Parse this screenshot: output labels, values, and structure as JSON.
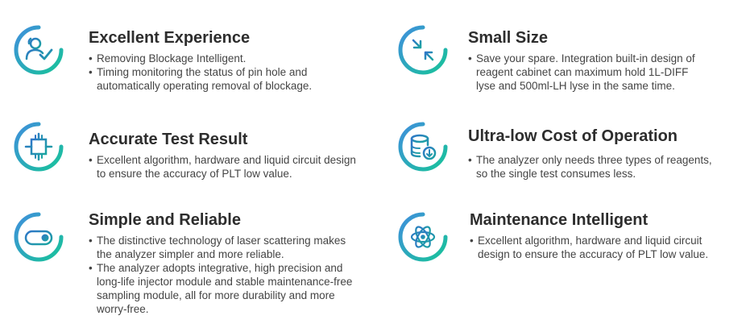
{
  "features": [
    {
      "icon": "users-check-icon",
      "title": "Excellent Experience",
      "bullets": [
        "Removing Blockage Intelligent.",
        "Timing monitoring the status of pin hole and automatically operating removal of blockage."
      ]
    },
    {
      "icon": "shrink-arrows-icon",
      "title": "Small Size",
      "bullets": [
        "Save your spare. Integration built-in design of reagent cabinet can maximum hold 1L-DIFF lyse and 500ml-LH lyse in the same time."
      ]
    },
    {
      "icon": "target-frame-icon",
      "title": "Accurate Test Result",
      "bullets": [
        "Excellent algorithm, hardware and liquid circuit design to ensure the accuracy of PLT low value."
      ]
    },
    {
      "icon": "database-download-icon",
      "title": "Ultra-low Cost of Operation",
      "bullets": [
        "The analyzer only needs three types of reagents, so the single test consumes less."
      ]
    },
    {
      "icon": "toggle-switch-icon",
      "title": "Simple and Reliable",
      "bullets": [
        "The distinctive technology of laser scattering makes the analyzer simpler and more reliable.",
        "The analyzer adopts integrative, high precision and long-life injector module and stable maintenance-free sampling module, all for more durability and more worry-free."
      ]
    },
    {
      "icon": "atom-icon",
      "title": "Maintenance Intelligent",
      "bullets": [
        "Excellent algorithm, hardware and liquid circuit design to ensure the accuracy of PLT low value."
      ]
    }
  ],
  "colors": {
    "ring_start": "#3b9ad8",
    "ring_end": "#1ec09a",
    "icon_stroke": "#2e7fbd",
    "title": "#2d2d2d",
    "text": "#444444"
  }
}
